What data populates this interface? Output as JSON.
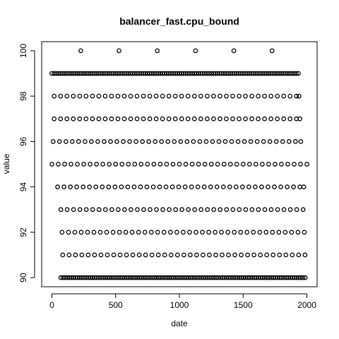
{
  "chart_data": {
    "type": "scatter",
    "title": "balancer_fast.cpu_bound",
    "xlabel": "date",
    "ylabel": "value",
    "xlim": [
      -80,
      2080
    ],
    "ylim": [
      89.6,
      100.4
    ],
    "xticks": [
      0,
      500,
      1000,
      1500,
      2000
    ],
    "xtick_labels": [
      "0",
      "500",
      "1000",
      "1500",
      "2000"
    ],
    "yticks": [
      90,
      92,
      94,
      96,
      98,
      100
    ],
    "ytick_labels": [
      "90",
      "92",
      "94",
      "96",
      "98",
      "100"
    ],
    "grid": false,
    "series": [
      {
        "values": [
          {
            "level": 100,
            "x": [
              227,
              527,
              827,
              1127,
              1427,
              1727
            ]
          },
          {
            "level": 99,
            "x": [
              0,
              17,
              33,
              50,
              67,
              83,
              100,
              117,
              133,
              150,
              167,
              183,
              200,
              217,
              233,
              250,
              267,
              283,
              300,
              317,
              333,
              350,
              367,
              383,
              400,
              417,
              433,
              450,
              467,
              483,
              500,
              517,
              533,
              550,
              567,
              583,
              600,
              617,
              633,
              650,
              667,
              683,
              700,
              717,
              733,
              750,
              767,
              783,
              800,
              817,
              833,
              850,
              867,
              883,
              900,
              917,
              933,
              950,
              967,
              983,
              1000,
              1017,
              1033,
              1050,
              1067,
              1083,
              1100,
              1117,
              1133,
              1150,
              1167,
              1183,
              1200,
              1217,
              1233,
              1250,
              1267,
              1283,
              1300,
              1317,
              1333,
              1350,
              1367,
              1383,
              1400,
              1417,
              1433,
              1450,
              1467,
              1483,
              1500,
              1517,
              1533,
              1550,
              1567,
              1583,
              1600,
              1617,
              1633,
              1650,
              1667,
              1683,
              1700,
              1717,
              1733,
              1750,
              1767,
              1783,
              1800,
              1817,
              1833,
              1850,
              1867,
              1883,
              1900,
              1917,
              1933
            ]
          },
          {
            "level": 98,
            "x": [
              18,
              68,
              118,
              168,
              218,
              268,
              318,
              368,
              418,
              468,
              518,
              568,
              618,
              668,
              718,
              768,
              818,
              868,
              918,
              968,
              1018,
              1068,
              1118,
              1168,
              1218,
              1268,
              1318,
              1368,
              1418,
              1468,
              1518,
              1568,
              1618,
              1668,
              1718,
              1768,
              1818,
              1868,
              1918,
              1938
            ]
          },
          {
            "level": 97,
            "x": [
              18,
              68,
              118,
              168,
              218,
              268,
              318,
              368,
              418,
              468,
              518,
              568,
              618,
              668,
              718,
              768,
              818,
              868,
              918,
              968,
              1018,
              1068,
              1118,
              1168,
              1218,
              1268,
              1318,
              1368,
              1418,
              1468,
              1518,
              1568,
              1618,
              1668,
              1718,
              1768,
              1818,
              1868,
              1918,
              1945
            ]
          },
          {
            "level": 96,
            "x": [
              10,
              60,
              110,
              160,
              210,
              260,
              310,
              360,
              410,
              460,
              510,
              560,
              610,
              660,
              710,
              760,
              810,
              860,
              910,
              960,
              1010,
              1060,
              1110,
              1160,
              1210,
              1260,
              1310,
              1360,
              1410,
              1460,
              1510,
              1560,
              1610,
              1660,
              1710,
              1760,
              1810,
              1860,
              1910,
              1952
            ]
          },
          {
            "level": 95,
            "x": [
              0,
              50,
              100,
              150,
              200,
              250,
              300,
              350,
              400,
              450,
              500,
              550,
              600,
              650,
              700,
              750,
              800,
              850,
              900,
              950,
              1000,
              1050,
              1100,
              1150,
              1200,
              1250,
              1300,
              1350,
              1400,
              1450,
              1500,
              1550,
              1600,
              1650,
              1700,
              1750,
              1800,
              1850,
              1900,
              1950,
              2000
            ]
          },
          {
            "level": 94,
            "x": [
              45,
              95,
              145,
              195,
              245,
              295,
              345,
              395,
              445,
              495,
              545,
              595,
              645,
              695,
              745,
              795,
              845,
              895,
              945,
              995,
              1045,
              1095,
              1145,
              1195,
              1245,
              1295,
              1345,
              1395,
              1445,
              1495,
              1545,
              1595,
              1645,
              1695,
              1745,
              1795,
              1845,
              1895,
              1945,
              1975
            ]
          },
          {
            "level": 93,
            "x": [
              70,
              120,
              170,
              220,
              270,
              320,
              370,
              420,
              470,
              520,
              570,
              620,
              670,
              720,
              770,
              820,
              870,
              920,
              970,
              1020,
              1070,
              1120,
              1170,
              1220,
              1270,
              1320,
              1370,
              1420,
              1470,
              1520,
              1570,
              1620,
              1670,
              1720,
              1770,
              1820,
              1870,
              1920,
              1970
            ]
          },
          {
            "level": 92,
            "x": [
              80,
              130,
              180,
              230,
              280,
              330,
              380,
              430,
              480,
              530,
              580,
              630,
              680,
              730,
              780,
              830,
              880,
              930,
              980,
              1030,
              1080,
              1130,
              1180,
              1230,
              1280,
              1330,
              1380,
              1430,
              1480,
              1530,
              1580,
              1630,
              1680,
              1730,
              1780,
              1830,
              1880,
              1930,
              1980
            ]
          },
          {
            "level": 91,
            "x": [
              85,
              135,
              185,
              235,
              285,
              335,
              385,
              435,
              485,
              535,
              585,
              635,
              685,
              735,
              785,
              835,
              885,
              935,
              985,
              1035,
              1085,
              1135,
              1185,
              1235,
              1285,
              1335,
              1385,
              1435,
              1485,
              1535,
              1585,
              1635,
              1685,
              1735,
              1785,
              1835,
              1885,
              1935,
              1985
            ]
          },
          {
            "level": 90,
            "x": [
              70,
              87,
              103,
              120,
              137,
              153,
              170,
              187,
              203,
              220,
              237,
              253,
              270,
              287,
              303,
              320,
              337,
              353,
              370,
              387,
              403,
              420,
              437,
              453,
              470,
              487,
              503,
              520,
              537,
              553,
              570,
              587,
              603,
              620,
              637,
              653,
              670,
              687,
              703,
              720,
              737,
              753,
              770,
              787,
              803,
              820,
              837,
              853,
              870,
              887,
              903,
              920,
              937,
              953,
              970,
              987,
              1003,
              1020,
              1037,
              1053,
              1070,
              1087,
              1103,
              1120,
              1137,
              1153,
              1170,
              1187,
              1203,
              1220,
              1237,
              1253,
              1270,
              1287,
              1303,
              1320,
              1337,
              1353,
              1370,
              1387,
              1403,
              1420,
              1437,
              1453,
              1470,
              1487,
              1503,
              1520,
              1537,
              1553,
              1570,
              1587,
              1603,
              1620,
              1637,
              1653,
              1670,
              1687,
              1703,
              1720,
              1737,
              1753,
              1770,
              1787,
              1803,
              1820,
              1837,
              1853,
              1870,
              1887,
              1903,
              1920,
              1937,
              1953,
              1970,
              1987
            ]
          }
        ]
      }
    ]
  }
}
